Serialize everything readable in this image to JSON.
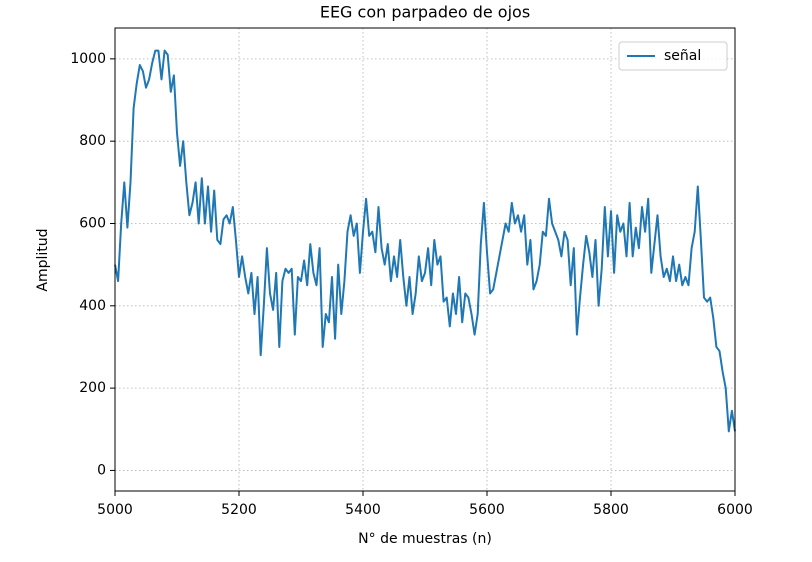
{
  "chart_data": {
    "type": "line",
    "title": "EEG con parpadeo de ojos",
    "xlabel": "N° de muestras (n)",
    "ylabel": "Amplitud",
    "x": [
      5000,
      5005,
      5010,
      5015,
      5020,
      5025,
      5030,
      5035,
      5040,
      5045,
      5050,
      5055,
      5060,
      5065,
      5070,
      5075,
      5080,
      5085,
      5090,
      5095,
      5100,
      5105,
      5110,
      5115,
      5120,
      5125,
      5130,
      5135,
      5140,
      5145,
      5150,
      5155,
      5160,
      5165,
      5170,
      5175,
      5180,
      5185,
      5190,
      5195,
      5200,
      5205,
      5210,
      5215,
      5220,
      5225,
      5230,
      5235,
      5240,
      5245,
      5250,
      5255,
      5260,
      5265,
      5270,
      5275,
      5280,
      5285,
      5290,
      5295,
      5300,
      5305,
      5310,
      5315,
      5320,
      5325,
      5330,
      5335,
      5340,
      5345,
      5350,
      5355,
      5360,
      5365,
      5370,
      5375,
      5380,
      5385,
      5390,
      5395,
      5400,
      5405,
      5410,
      5415,
      5420,
      5425,
      5430,
      5435,
      5440,
      5445,
      5450,
      5455,
      5460,
      5465,
      5470,
      5475,
      5480,
      5485,
      5490,
      5495,
      5500,
      5505,
      5510,
      5515,
      5520,
      5525,
      5530,
      5535,
      5540,
      5545,
      5550,
      5555,
      5560,
      5565,
      5570,
      5575,
      5580,
      5585,
      5590,
      5595,
      5600,
      5605,
      5610,
      5615,
      5620,
      5625,
      5630,
      5635,
      5640,
      5645,
      5650,
      5655,
      5660,
      5665,
      5670,
      5675,
      5680,
      5685,
      5690,
      5695,
      5700,
      5705,
      5710,
      5715,
      5720,
      5725,
      5730,
      5735,
      5740,
      5745,
      5750,
      5755,
      5760,
      5765,
      5770,
      5775,
      5780,
      5785,
      5790,
      5795,
      5800,
      5805,
      5810,
      5815,
      5820,
      5825,
      5830,
      5835,
      5840,
      5845,
      5850,
      5855,
      5860,
      5865,
      5870,
      5875,
      5880,
      5885,
      5890,
      5895,
      5900,
      5905,
      5910,
      5915,
      5920,
      5925,
      5930,
      5935,
      5940,
      5945,
      5950,
      5955,
      5960,
      5965,
      5970,
      5975,
      5980,
      5985,
      5990,
      5995,
      6000
    ],
    "series": [
      {
        "name": "señal",
        "color": "#1f77b4",
        "values": [
          500,
          460,
          600,
          700,
          590,
          700,
          880,
          940,
          985,
          970,
          930,
          950,
          990,
          1020,
          1020,
          950,
          1020,
          1010,
          920,
          960,
          820,
          740,
          800,
          700,
          620,
          650,
          700,
          600,
          710,
          600,
          690,
          580,
          680,
          560,
          550,
          610,
          620,
          600,
          640,
          560,
          470,
          520,
          470,
          430,
          480,
          380,
          470,
          280,
          400,
          540,
          430,
          390,
          480,
          300,
          460,
          490,
          480,
          490,
          330,
          470,
          460,
          510,
          450,
          550,
          480,
          450,
          540,
          300,
          380,
          360,
          470,
          320,
          500,
          380,
          460,
          580,
          620,
          570,
          600,
          480,
          580,
          660,
          570,
          580,
          530,
          640,
          540,
          500,
          550,
          460,
          520,
          470,
          560,
          470,
          400,
          470,
          380,
          430,
          520,
          460,
          480,
          540,
          450,
          560,
          500,
          520,
          410,
          420,
          350,
          430,
          380,
          470,
          360,
          430,
          420,
          380,
          330,
          380,
          550,
          650,
          530,
          430,
          440,
          480,
          520,
          560,
          600,
          580,
          650,
          600,
          620,
          580,
          620,
          500,
          560,
          440,
          460,
          500,
          580,
          570,
          660,
          600,
          580,
          560,
          520,
          580,
          560,
          450,
          540,
          330,
          420,
          500,
          570,
          530,
          470,
          560,
          400,
          490,
          640,
          520,
          630,
          480,
          620,
          580,
          600,
          520,
          650,
          520,
          590,
          540,
          640,
          580,
          660,
          480,
          550,
          620,
          520,
          470,
          490,
          460,
          520,
          460,
          500,
          450,
          470,
          450,
          540,
          580,
          690,
          560,
          420,
          410,
          420,
          370,
          300,
          290,
          240,
          200,
          95,
          145,
          95
        ]
      }
    ],
    "xlim": [
      5000,
      6000
    ],
    "xticks": [
      5000,
      5200,
      5400,
      5600,
      5800,
      6000
    ],
    "ylim": [
      -50,
      1075
    ],
    "yticks": [
      0,
      200,
      400,
      600,
      800,
      1000
    ],
    "grid": true,
    "legend": "upper right"
  }
}
